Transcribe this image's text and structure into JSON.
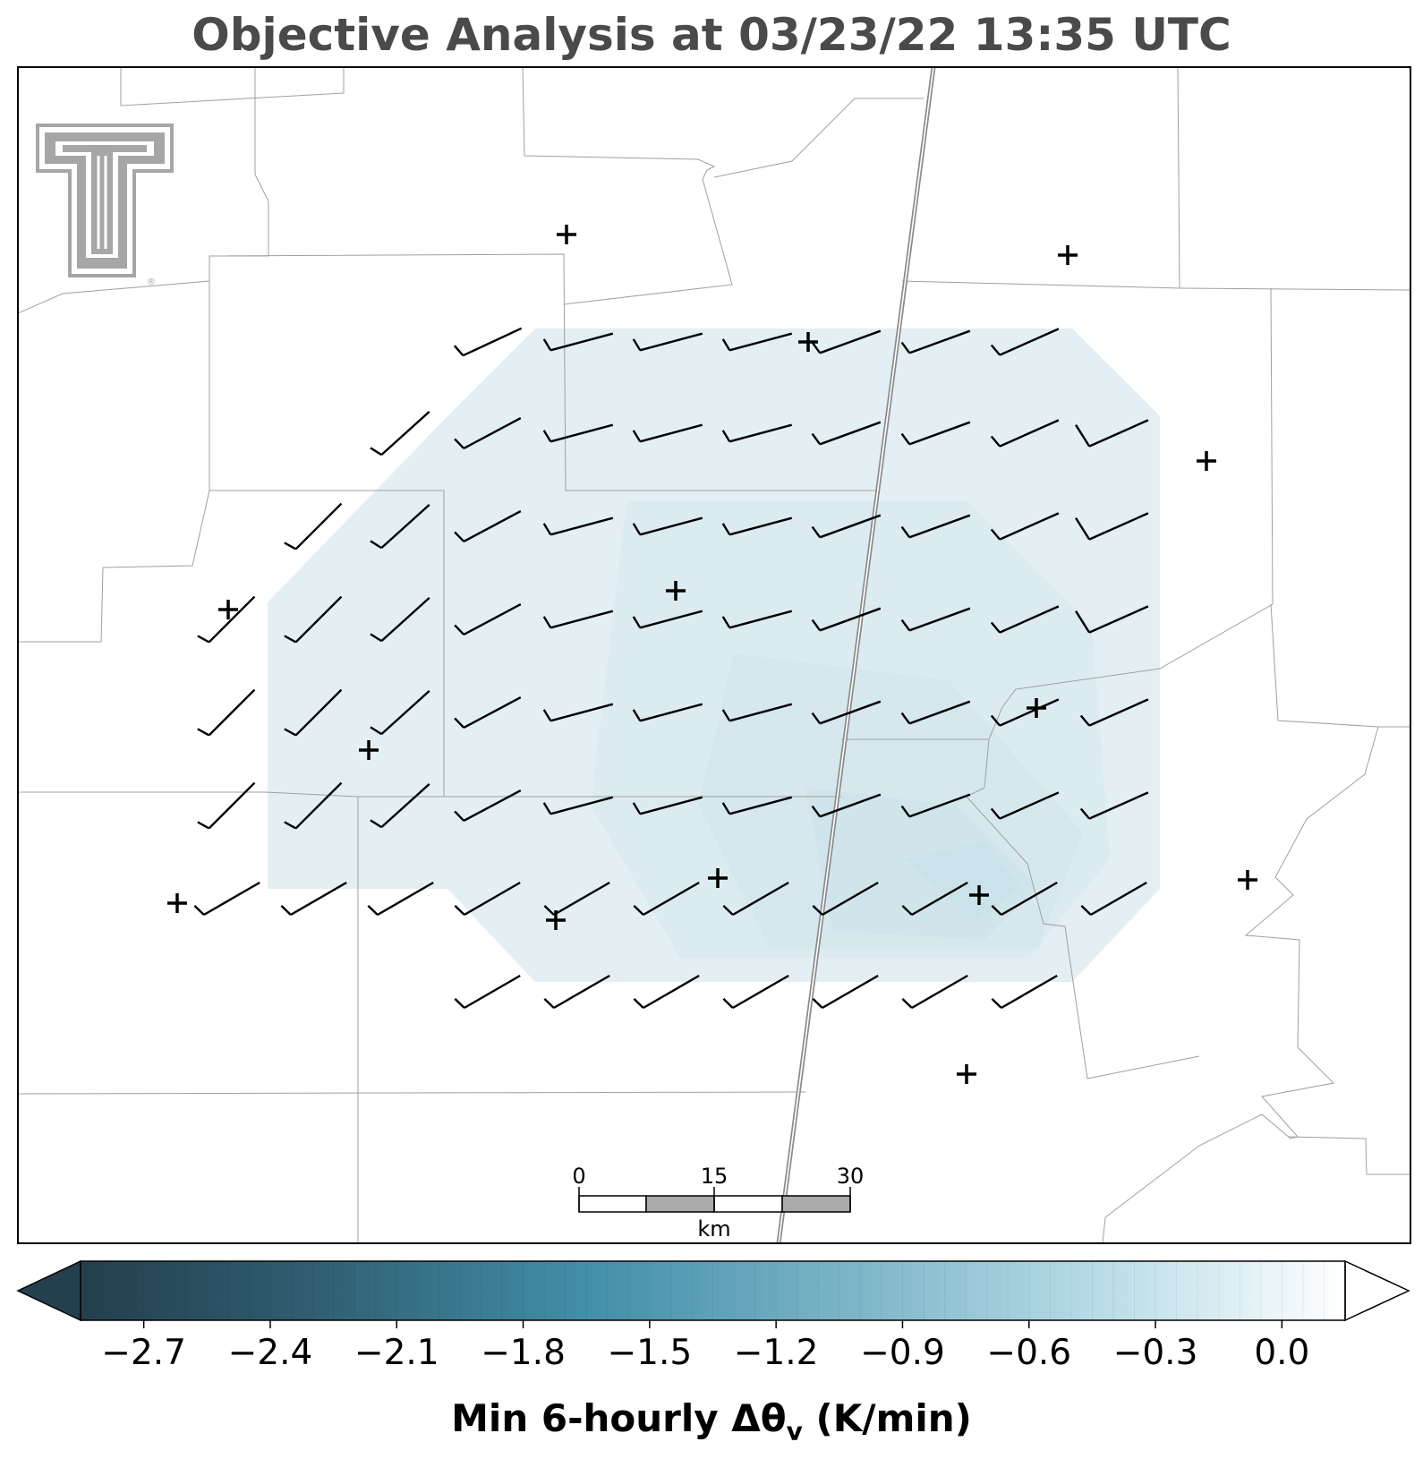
{
  "title": "Objective Analysis at 03/23/22 13:35 UTC",
  "logo": {
    "name": "texas-tech-double-t-logo",
    "registered_mark": "®"
  },
  "scale_bar": {
    "labels": [
      "0",
      "15",
      "30"
    ],
    "unit": "km"
  },
  "colorbar": {
    "label_main": "Min 6-hourly Δθ",
    "label_sub": "v",
    "label_unit": " (K/min)",
    "ticks": [
      "−2.7",
      "−2.4",
      "−2.1",
      "−1.8",
      "−1.5",
      "−1.2",
      "−0.9",
      "−0.6",
      "−0.3",
      "0.0"
    ],
    "tick_values": [
      -2.7,
      -2.4,
      -2.1,
      -1.8,
      -1.5,
      -1.2,
      -0.9,
      -0.6,
      -0.3,
      0.0
    ],
    "range": [
      -2.85,
      0.15
    ],
    "extend": "both",
    "colors": [
      "#243f4d",
      "#3e8aa8",
      "#9fcfdf",
      "#ffffff"
    ]
  },
  "colors": {
    "field_fill": "#e1eef2",
    "field_mid": "#d9eaf0",
    "field_core": "#cfe4eb",
    "county_lines": "#a0a0a0",
    "interstate": "#8a8a8a",
    "barbs": "#000000",
    "logo_gray": "#a6a6a6"
  },
  "icons": {
    "station": "plus-marker",
    "wind": "wind-barb"
  }
}
